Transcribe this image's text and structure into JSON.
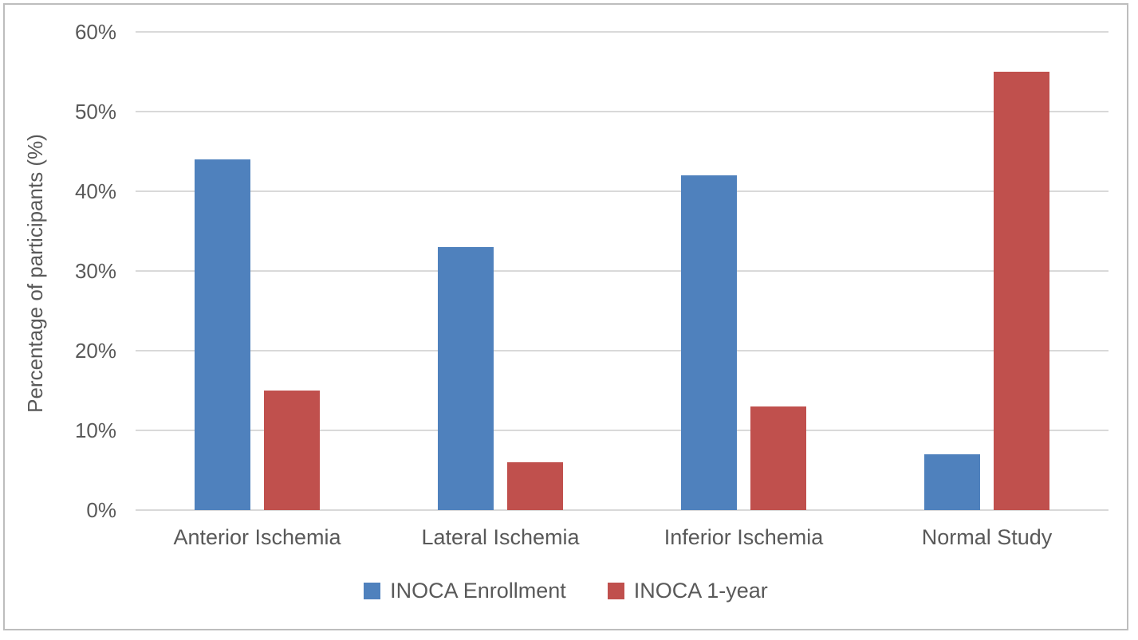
{
  "figure": {
    "border_color": "#BDBDBD",
    "background_color": "#FFFFFF",
    "text_color": "#595959",
    "gridline_color": "#D9D9D9"
  },
  "chart_data": {
    "type": "bar",
    "title": "",
    "xlabel": "",
    "ylabel": "Percentage of participants (%)",
    "categories": [
      "Anterior Ischemia",
      "Lateral Ischemia",
      "Inferior Ischemia",
      "Normal Study"
    ],
    "series": [
      {
        "name": "INOCA Enrollment",
        "color": "#4F81BD",
        "values": [
          44,
          33,
          42,
          7
        ]
      },
      {
        "name": "INOCA 1-year",
        "color": "#C0504D",
        "values": [
          15,
          6,
          13,
          55
        ]
      }
    ],
    "ylim": [
      0,
      60
    ],
    "ytick_step": 10,
    "ytick_labels": [
      "0%",
      "10%",
      "20%",
      "30%",
      "40%",
      "50%",
      "60%"
    ],
    "grid": true,
    "legend_position": "bottom"
  }
}
